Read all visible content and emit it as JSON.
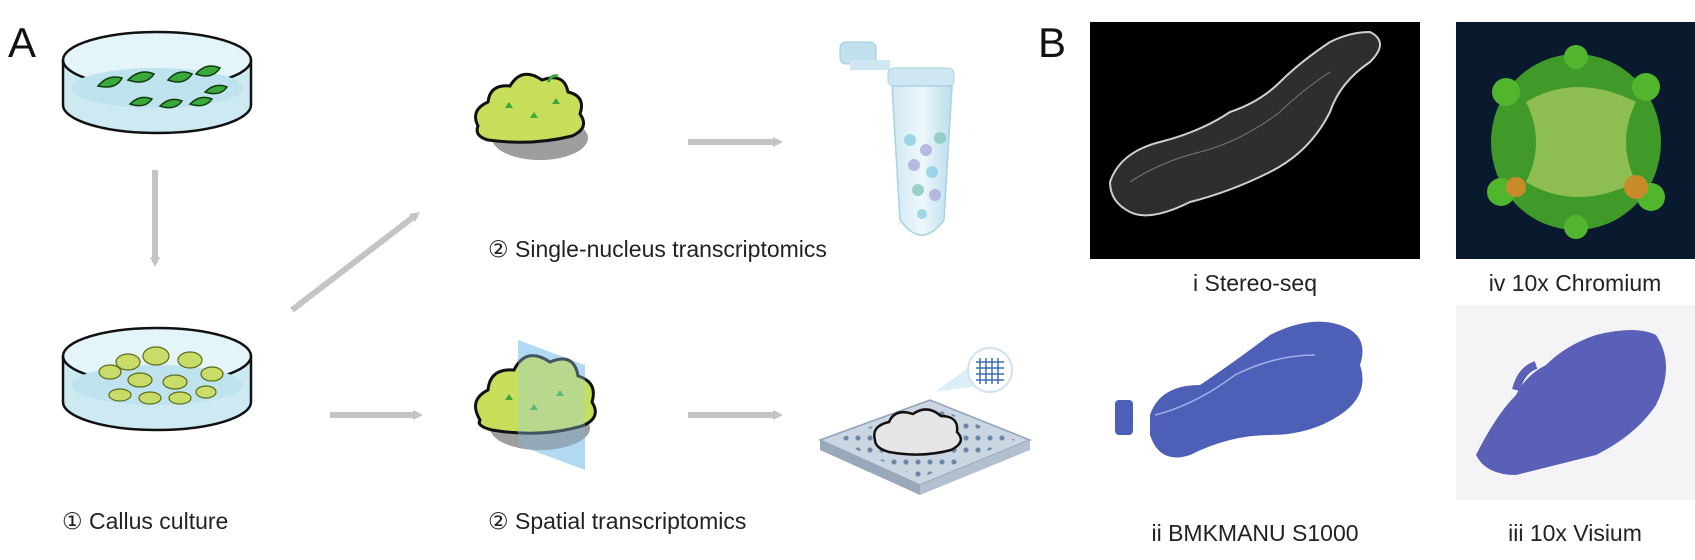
{
  "panel_a": {
    "letter": "A",
    "callus_culture": "① Callus culture",
    "single_nucleus": "② Single-nucleus transcriptomics",
    "spatial": "② Spatial transcriptomics"
  },
  "panel_b": {
    "letter": "B",
    "images": [
      {
        "label": "i Stereo-seq"
      },
      {
        "label": "iv 10x Chromium"
      },
      {
        "label": "ii BMKMANU S1000"
      },
      {
        "label": "iii 10x Visium"
      }
    ]
  }
}
